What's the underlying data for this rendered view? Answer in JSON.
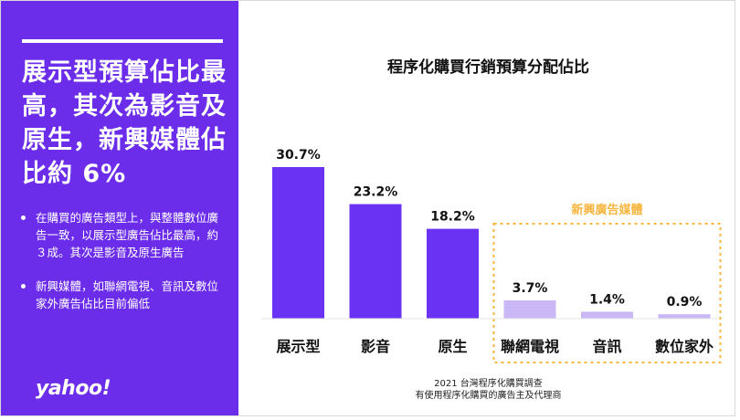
{
  "panel": {
    "headline": "展示型預算佔比最高，其次為影音及原生，新興媒體佔比約 6%",
    "bullets": [
      "在購買的廣告類型上，與整體數位廣告一致，以展示型廣告佔比最高，約３成。其次是影音及原生廣告",
      "新興媒體，如聯網電視、音訊及數位家外廣告佔比目前偏低"
    ],
    "logo": "yahoo!"
  },
  "chart_data": {
    "type": "bar",
    "title": "程序化購買行銷預算分配佔比",
    "categories": [
      "展示型",
      "影音",
      "原生",
      "聯網電視",
      "音訊",
      "數位家外"
    ],
    "values": [
      30.7,
      23.2,
      18.2,
      3.7,
      1.4,
      0.9
    ],
    "value_labels": [
      "30.7%",
      "23.2%",
      "18.2%",
      "3.7%",
      "1.4%",
      "0.9%"
    ],
    "unit": "%",
    "ylim": [
      0,
      30.7
    ],
    "grid": false,
    "group_annotation": {
      "label": "新興廣告媒體",
      "categories": [
        "聯網電視",
        "音訊",
        "數位家外"
      ]
    },
    "colors": {
      "main": "#6a33f3",
      "emerging": "#c9b8f5",
      "annotation": "#f6b63f"
    }
  },
  "source": {
    "line1": "2021 台灣程序化購買調查",
    "line2": "有使用程序化購買的廣告主及代理商"
  }
}
